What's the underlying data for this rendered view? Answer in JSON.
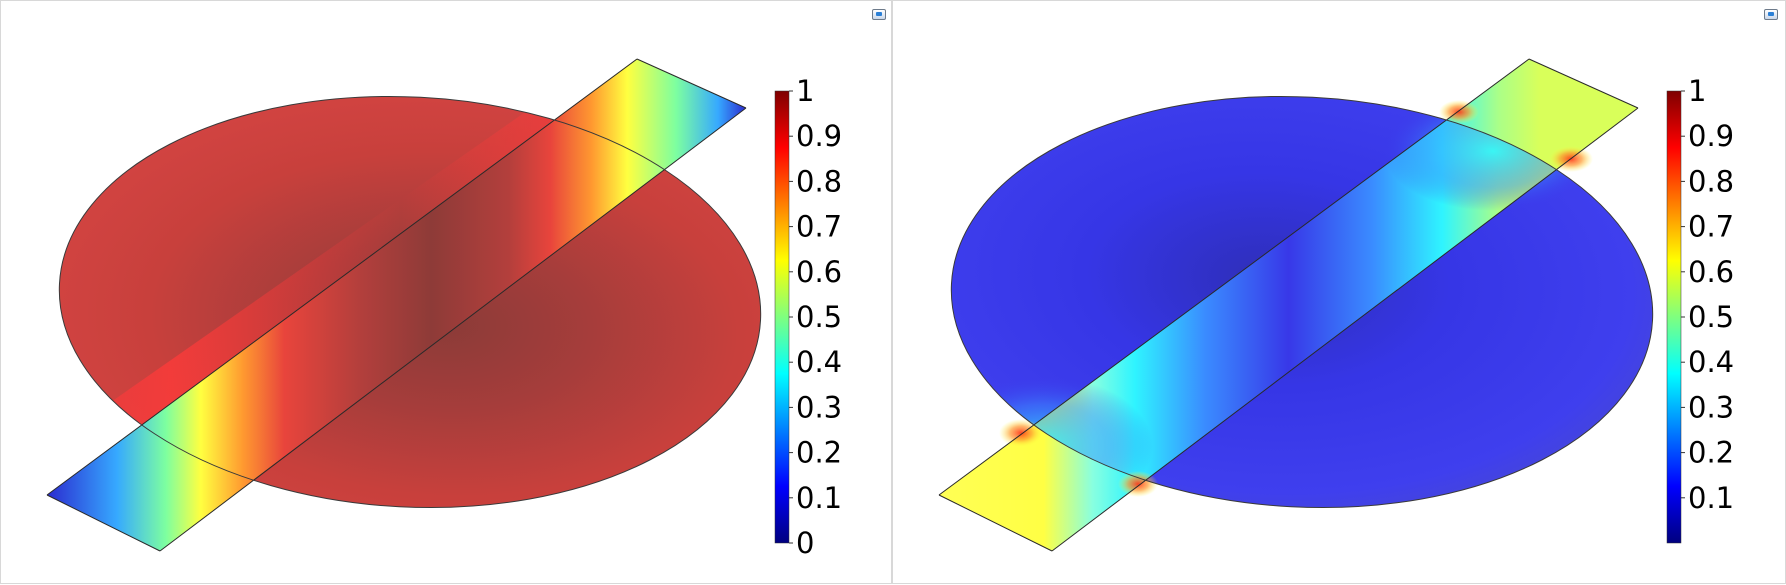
{
  "chart_data": [
    {
      "type": "heatmap",
      "title": "",
      "colormap": "jet (rainbow)",
      "colorbar_ticks": [
        "0",
        "0.1",
        "0.2",
        "0.3",
        "0.4",
        "0.5",
        "0.6",
        "0.7",
        "0.8",
        "0.9",
        "1"
      ],
      "colorbar_range": [
        0,
        1
      ],
      "description_fields": {
        "disk_values": {
          "center": 0.97,
          "upper_left": 0.95,
          "lower_right": 0.92,
          "near_strip": 0.8
        },
        "strip_values": {
          "upper_end": 0.05,
          "lower_end": 0.05,
          "at_disk_edge": 0.55,
          "inside_disk": 0.97
        }
      }
    },
    {
      "type": "heatmap",
      "title": "",
      "colormap": "jet (rainbow)",
      "colorbar_ticks": [
        "0.1",
        "0.2",
        "0.3",
        "0.4",
        "0.5",
        "0.6",
        "0.7",
        "0.8",
        "0.9",
        "1"
      ],
      "colorbar_range": [
        0,
        1
      ],
      "description_fields": {
        "disk_values": {
          "center": 0.12,
          "upper_left": 0.15,
          "lower_right": 0.14,
          "near_strip": 0.3
        },
        "strip_values": {
          "upper_end": 0.58,
          "lower_end": 0.62,
          "at_disk_edge": 0.4,
          "inside_disk": 0.2
        }
      }
    }
  ],
  "colors": {
    "jet_stops": [
      "#00007f",
      "#0000ff",
      "#007fff",
      "#00ffff",
      "#7fff7f",
      "#ffff00",
      "#ff7f00",
      "#ff0000",
      "#7f0000"
    ]
  }
}
